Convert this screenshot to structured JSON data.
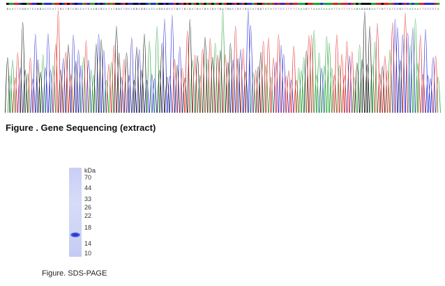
{
  "sequence": {
    "bases": "GAATTCGGATCCGGACCCATTGCTGTCGCCATCAAGCGCATATGGCTGCCGGCGGCACCAGGCGCCTGCTGTGATGATGATGATGATGGCTGCTGCCATGGTATATCTCCTTCTTAAAGTTAAACAAAATTATTTCTAGAGGGGAATTGTTATCCGCTCACAATTCCCCTA",
    "base_colors": {
      "A": "#21a335",
      "C": "#2a2ad8",
      "G": "#111111",
      "T": "#e02222"
    }
  },
  "figure_sequencing": {
    "caption": "Figure . Gene Sequencing (extract)"
  },
  "figure_gel": {
    "unit": "kDa",
    "markers": [
      "70",
      "44",
      "33",
      "26",
      "22",
      "18",
      "14",
      "10"
    ],
    "caption": "Figure. SDS-PAGE"
  }
}
